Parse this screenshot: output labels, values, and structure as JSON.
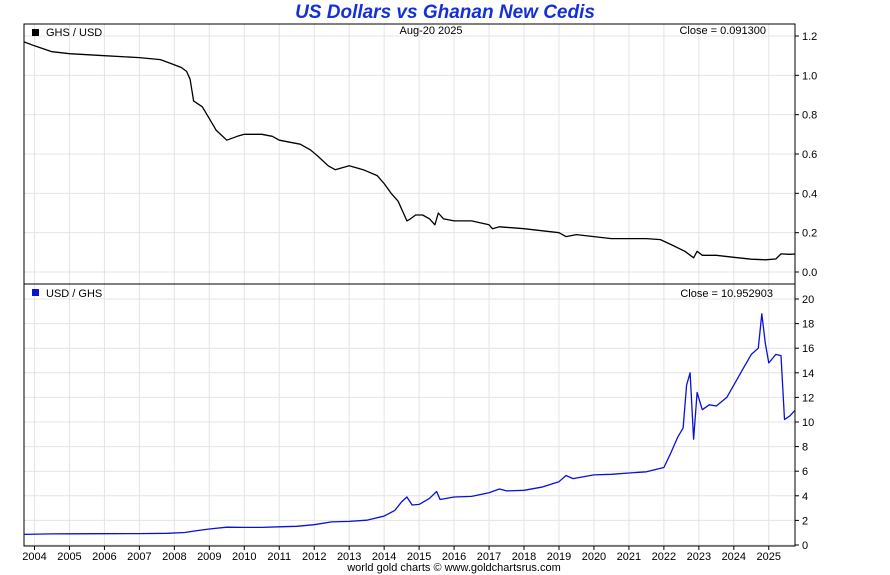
{
  "title": "US Dollars vs Ghanan New Cedis",
  "date": "Aug-20  2025",
  "footer": "world gold charts © www.goldchartsrus.com",
  "colors": {
    "title": "#1530d8",
    "top_series": "#000000",
    "bottom_series": "#0a10d8",
    "grid": "#e4e4e4"
  },
  "x_labels": [
    "2004",
    "2005",
    "2006",
    "2007",
    "2008",
    "2009",
    "2010",
    "2011",
    "2012",
    "2013",
    "2014",
    "2015",
    "2016",
    "2017",
    "2018",
    "2019",
    "2020",
    "2021",
    "2022",
    "2023",
    "2024",
    "2025"
  ],
  "chart_data": [
    {
      "type": "line",
      "legend": "GHS / USD",
      "close_label": "Close = 0.091300",
      "ylim": [
        0,
        1.2
      ],
      "yticks": [
        "0.0",
        "0.2",
        "0.4",
        "0.6",
        "0.8",
        "1.0",
        "1.2"
      ],
      "xlim": [
        2003.7,
        2025.75
      ],
      "grid": true,
      "series": [
        {
          "name": "GHS / USD",
          "points": [
            [
              2003.7,
              1.17
            ],
            [
              2004.0,
              1.15
            ],
            [
              2004.5,
              1.12
            ],
            [
              2005.0,
              1.11
            ],
            [
              2006.0,
              1.1
            ],
            [
              2007.0,
              1.09
            ],
            [
              2007.6,
              1.08
            ],
            [
              2007.9,
              1.06
            ],
            [
              2008.2,
              1.04
            ],
            [
              2008.35,
              1.02
            ],
            [
              2008.45,
              0.98
            ],
            [
              2008.55,
              0.87
            ],
            [
              2008.8,
              0.84
            ],
            [
              2009.0,
              0.78
            ],
            [
              2009.2,
              0.72
            ],
            [
              2009.5,
              0.67
            ],
            [
              2009.8,
              0.69
            ],
            [
              2010.0,
              0.7
            ],
            [
              2010.5,
              0.7
            ],
            [
              2010.8,
              0.69
            ],
            [
              2011.0,
              0.67
            ],
            [
              2011.3,
              0.66
            ],
            [
              2011.6,
              0.65
            ],
            [
              2011.9,
              0.62
            ],
            [
              2012.1,
              0.59
            ],
            [
              2012.4,
              0.54
            ],
            [
              2012.6,
              0.52
            ],
            [
              2012.8,
              0.53
            ],
            [
              2013.0,
              0.54
            ],
            [
              2013.4,
              0.52
            ],
            [
              2013.8,
              0.49
            ],
            [
              2014.0,
              0.45
            ],
            [
              2014.2,
              0.4
            ],
            [
              2014.4,
              0.36
            ],
            [
              2014.55,
              0.3
            ],
            [
              2014.65,
              0.26
            ],
            [
              2014.75,
              0.27
            ],
            [
              2014.9,
              0.29
            ],
            [
              2015.1,
              0.29
            ],
            [
              2015.3,
              0.27
            ],
            [
              2015.45,
              0.24
            ],
            [
              2015.55,
              0.3
            ],
            [
              2015.7,
              0.27
            ],
            [
              2016.0,
              0.26
            ],
            [
              2016.5,
              0.26
            ],
            [
              2017.0,
              0.24
            ],
            [
              2017.1,
              0.22
            ],
            [
              2017.3,
              0.23
            ],
            [
              2018.0,
              0.22
            ],
            [
              2018.5,
              0.21
            ],
            [
              2019.0,
              0.2
            ],
            [
              2019.2,
              0.18
            ],
            [
              2019.5,
              0.19
            ],
            [
              2020.0,
              0.18
            ],
            [
              2020.5,
              0.17
            ],
            [
              2021.0,
              0.17
            ],
            [
              2021.5,
              0.17
            ],
            [
              2021.9,
              0.165
            ],
            [
              2022.2,
              0.14
            ],
            [
              2022.6,
              0.105
            ],
            [
              2022.85,
              0.072
            ],
            [
              2022.95,
              0.105
            ],
            [
              2023.1,
              0.085
            ],
            [
              2023.5,
              0.085
            ],
            [
              2024.0,
              0.075
            ],
            [
              2024.5,
              0.065
            ],
            [
              2024.9,
              0.062
            ],
            [
              2025.2,
              0.066
            ],
            [
              2025.35,
              0.092
            ],
            [
              2025.6,
              0.09
            ],
            [
              2025.75,
              0.0913
            ]
          ]
        }
      ]
    },
    {
      "type": "line",
      "legend": "USD / GHS",
      "close_label": "Close = 10.952903",
      "ylim": [
        0,
        20
      ],
      "yticks": [
        "0",
        "2",
        "4",
        "6",
        "8",
        "10",
        "12",
        "14",
        "16",
        "18",
        "20"
      ],
      "xlim": [
        2003.7,
        2025.75
      ],
      "grid": true,
      "series": [
        {
          "name": "USD / GHS",
          "points": [
            [
              2003.7,
              0.86
            ],
            [
              2004.5,
              0.9
            ],
            [
              2005.0,
              0.91
            ],
            [
              2006.0,
              0.92
            ],
            [
              2007.0,
              0.93
            ],
            [
              2007.8,
              0.95
            ],
            [
              2008.3,
              1.02
            ],
            [
              2008.6,
              1.15
            ],
            [
              2009.0,
              1.3
            ],
            [
              2009.5,
              1.45
            ],
            [
              2010.0,
              1.43
            ],
            [
              2010.5,
              1.43
            ],
            [
              2011.0,
              1.48
            ],
            [
              2011.5,
              1.52
            ],
            [
              2012.0,
              1.65
            ],
            [
              2012.5,
              1.88
            ],
            [
              2013.0,
              1.92
            ],
            [
              2013.5,
              2.02
            ],
            [
              2014.0,
              2.35
            ],
            [
              2014.3,
              2.8
            ],
            [
              2014.5,
              3.5
            ],
            [
              2014.65,
              3.9
            ],
            [
              2014.8,
              3.25
            ],
            [
              2015.0,
              3.3
            ],
            [
              2015.3,
              3.8
            ],
            [
              2015.5,
              4.35
            ],
            [
              2015.6,
              3.7
            ],
            [
              2016.0,
              3.9
            ],
            [
              2016.5,
              3.95
            ],
            [
              2017.0,
              4.25
            ],
            [
              2017.3,
              4.55
            ],
            [
              2017.5,
              4.4
            ],
            [
              2018.0,
              4.45
            ],
            [
              2018.5,
              4.7
            ],
            [
              2019.0,
              5.15
            ],
            [
              2019.2,
              5.65
            ],
            [
              2019.4,
              5.4
            ],
            [
              2020.0,
              5.7
            ],
            [
              2020.5,
              5.75
            ],
            [
              2021.0,
              5.85
            ],
            [
              2021.5,
              5.95
            ],
            [
              2022.0,
              6.3
            ],
            [
              2022.2,
              7.5
            ],
            [
              2022.4,
              8.8
            ],
            [
              2022.55,
              9.5
            ],
            [
              2022.65,
              13.0
            ],
            [
              2022.75,
              14.0
            ],
            [
              2022.85,
              8.6
            ],
            [
              2022.95,
              12.4
            ],
            [
              2023.1,
              11.0
            ],
            [
              2023.3,
              11.4
            ],
            [
              2023.5,
              11.3
            ],
            [
              2023.8,
              12.0
            ],
            [
              2024.0,
              13.0
            ],
            [
              2024.3,
              14.5
            ],
            [
              2024.5,
              15.5
            ],
            [
              2024.7,
              16.0
            ],
            [
              2024.8,
              18.8
            ],
            [
              2024.9,
              16.4
            ],
            [
              2025.0,
              14.8
            ],
            [
              2025.2,
              15.5
            ],
            [
              2025.35,
              15.4
            ],
            [
              2025.45,
              10.2
            ],
            [
              2025.6,
              10.5
            ],
            [
              2025.75,
              10.95
            ]
          ]
        }
      ]
    }
  ]
}
